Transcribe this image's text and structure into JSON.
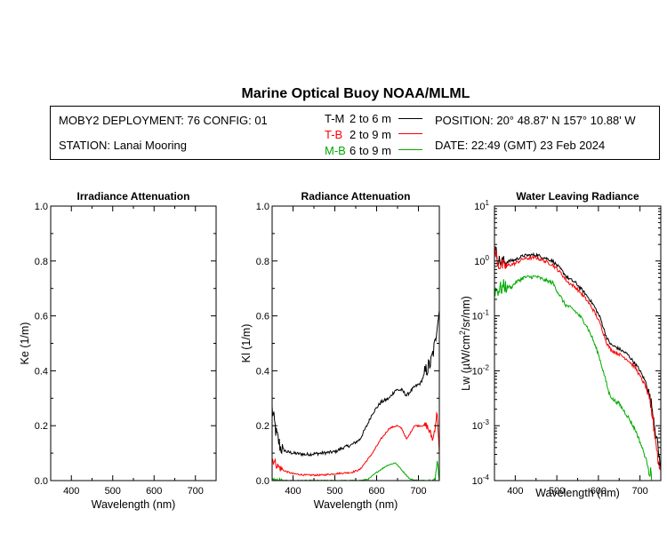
{
  "title": "Marine Optical Buoy NOAA/MLML",
  "info": {
    "deployment": "MOBY2 DEPLOYMENT: 76 CONFIG: 01",
    "station": "STATION: Lanai Mooring",
    "position": "POSITION: 20° 48.87' N   157° 10.88' W",
    "date": "DATE: 22:49 (GMT) 23 Feb 2024",
    "legend": [
      {
        "code": "T-M",
        "range": "2 to 6  m",
        "color": "#000000"
      },
      {
        "code": "T-B",
        "range": "2 to 9  m",
        "color": "#ff0000"
      },
      {
        "code": "M-B",
        "range": "6 to 9  m",
        "color": "#00aa00"
      }
    ]
  },
  "colors": {
    "tm": "#000000",
    "tb": "#ff0000",
    "mb": "#00aa00"
  },
  "chart_data": [
    {
      "type": "line",
      "title": "Irradiance Attenuation",
      "xlabel": "Wavelength (nm)",
      "ylabel": "Ke  (1/m)",
      "xlim": [
        350,
        750
      ],
      "ylim": [
        0,
        1.0
      ],
      "xticks": [
        400,
        500,
        600,
        700
      ],
      "yticks": [
        "0.0",
        "0.2",
        "0.4",
        "0.6",
        "0.8",
        "1.0"
      ],
      "series": []
    },
    {
      "type": "line",
      "title": "Radiance Attenuation",
      "xlabel": "Wavelength (nm)",
      "ylabel": "Kl  (1/m)",
      "xlim": [
        350,
        750
      ],
      "ylim": [
        0,
        1.0
      ],
      "xticks": [
        400,
        500,
        600,
        700
      ],
      "yticks": [
        "0.0",
        "0.2",
        "0.4",
        "0.6",
        "0.8",
        "1.0"
      ],
      "series": [
        {
          "key": "tm",
          "color": "#000000",
          "noise": 0.012,
          "points": [
            [
              350,
              0.26
            ],
            [
              360,
              0.17
            ],
            [
              370,
              0.12
            ],
            [
              385,
              0.105
            ],
            [
              400,
              0.1
            ],
            [
              430,
              0.095
            ],
            [
              470,
              0.1
            ],
            [
              500,
              0.105
            ],
            [
              520,
              0.12
            ],
            [
              540,
              0.13
            ],
            [
              560,
              0.15
            ],
            [
              575,
              0.195
            ],
            [
              590,
              0.245
            ],
            [
              610,
              0.285
            ],
            [
              630,
              0.3
            ],
            [
              645,
              0.33
            ],
            [
              660,
              0.33
            ],
            [
              672,
              0.31
            ],
            [
              690,
              0.34
            ],
            [
              705,
              0.355
            ],
            [
              718,
              0.4
            ],
            [
              730,
              0.43
            ],
            [
              740,
              0.5
            ],
            [
              745,
              0.58
            ],
            [
              750,
              0.62
            ]
          ]
        },
        {
          "key": "tb",
          "color": "#ff0000",
          "noise": 0.006,
          "points": [
            [
              350,
              0.08
            ],
            [
              365,
              0.05
            ],
            [
              380,
              0.035
            ],
            [
              400,
              0.025
            ],
            [
              430,
              0.02
            ],
            [
              470,
              0.02
            ],
            [
              500,
              0.025
            ],
            [
              540,
              0.03
            ],
            [
              560,
              0.04
            ],
            [
              575,
              0.07
            ],
            [
              590,
              0.1
            ],
            [
              610,
              0.15
            ],
            [
              630,
              0.19
            ],
            [
              648,
              0.2
            ],
            [
              660,
              0.19
            ],
            [
              672,
              0.15
            ],
            [
              690,
              0.2
            ],
            [
              705,
              0.2
            ],
            [
              720,
              0.2
            ],
            [
              735,
              0.15
            ],
            [
              745,
              0.25
            ],
            [
              750,
              0.1
            ]
          ]
        },
        {
          "key": "mb",
          "color": "#00aa00",
          "noise": 0.004,
          "points": [
            [
              350,
              0.0
            ],
            [
              420,
              0.0
            ],
            [
              500,
              0.0
            ],
            [
              560,
              0.0
            ],
            [
              580,
              0.005
            ],
            [
              600,
              0.03
            ],
            [
              625,
              0.055
            ],
            [
              645,
              0.065
            ],
            [
              665,
              0.03
            ],
            [
              680,
              0.005
            ],
            [
              700,
              0.0
            ],
            [
              740,
              0.0
            ],
            [
              745,
              0.08
            ],
            [
              750,
              0.0
            ]
          ]
        }
      ]
    },
    {
      "type": "line",
      "title": "Water Leaving Radiance",
      "xlabel": "Wavelength (nm)",
      "ylabel": "Lw  (µW/cm²/sr/nm)",
      "xlim": [
        350,
        750
      ],
      "ylim": [
        0.0001,
        10
      ],
      "log_y": true,
      "xticks": [
        400,
        500,
        600,
        700
      ],
      "ytick_exponents": [
        -4,
        -3,
        -2,
        -1,
        0,
        1
      ],
      "series": [
        {
          "key": "tm",
          "color": "#000000",
          "noise": 0.06,
          "points": [
            [
              350,
              1.8
            ],
            [
              360,
              1.0
            ],
            [
              375,
              0.95
            ],
            [
              400,
              1.05
            ],
            [
              420,
              1.25
            ],
            [
              450,
              1.3
            ],
            [
              470,
              1.15
            ],
            [
              490,
              1.0
            ],
            [
              510,
              0.7
            ],
            [
              525,
              0.5
            ],
            [
              545,
              0.4
            ],
            [
              560,
              0.3
            ],
            [
              575,
              0.22
            ],
            [
              590,
              0.15
            ],
            [
              605,
              0.09
            ],
            [
              620,
              0.04
            ],
            [
              630,
              0.03
            ],
            [
              650,
              0.025
            ],
            [
              670,
              0.02
            ],
            [
              690,
              0.013
            ],
            [
              700,
              0.01
            ],
            [
              715,
              0.006
            ],
            [
              730,
              0.002
            ],
            [
              740,
              0.0006
            ],
            [
              745,
              0.0003
            ],
            [
              750,
              0.0002
            ]
          ]
        },
        {
          "key": "tb",
          "color": "#ff0000",
          "noise": 0.06,
          "points": [
            [
              350,
              1.6
            ],
            [
              360,
              0.85
            ],
            [
              375,
              0.8
            ],
            [
              400,
              0.9
            ],
            [
              420,
              1.1
            ],
            [
              450,
              1.15
            ],
            [
              470,
              1.0
            ],
            [
              490,
              0.85
            ],
            [
              510,
              0.6
            ],
            [
              525,
              0.42
            ],
            [
              545,
              0.33
            ],
            [
              560,
              0.25
            ],
            [
              575,
              0.18
            ],
            [
              590,
              0.12
            ],
            [
              605,
              0.07
            ],
            [
              620,
              0.032
            ],
            [
              630,
              0.024
            ],
            [
              650,
              0.02
            ],
            [
              670,
              0.016
            ],
            [
              690,
              0.011
            ],
            [
              700,
              0.008
            ],
            [
              715,
              0.005
            ],
            [
              730,
              0.0015
            ],
            [
              740,
              0.0004
            ],
            [
              745,
              0.0002
            ],
            [
              750,
              0.00015
            ]
          ]
        },
        {
          "key": "mb",
          "color": "#00aa00",
          "noise": 0.07,
          "points": [
            [
              350,
              0.3
            ],
            [
              360,
              0.3
            ],
            [
              375,
              0.35
            ],
            [
              390,
              0.33
            ],
            [
              400,
              0.4
            ],
            [
              420,
              0.5
            ],
            [
              450,
              0.52
            ],
            [
              470,
              0.45
            ],
            [
              490,
              0.4
            ],
            [
              505,
              0.25
            ],
            [
              520,
              0.16
            ],
            [
              540,
              0.13
            ],
            [
              555,
              0.1
            ],
            [
              570,
              0.07
            ],
            [
              585,
              0.04
            ],
            [
              600,
              0.02
            ],
            [
              615,
              0.008
            ],
            [
              625,
              0.004
            ],
            [
              635,
              0.003
            ],
            [
              650,
              0.0025
            ],
            [
              670,
              0.0015
            ],
            [
              690,
              0.0008
            ],
            [
              705,
              0.0004
            ],
            [
              720,
              0.00018
            ],
            [
              730,
              0.0001
            ]
          ]
        }
      ]
    }
  ]
}
